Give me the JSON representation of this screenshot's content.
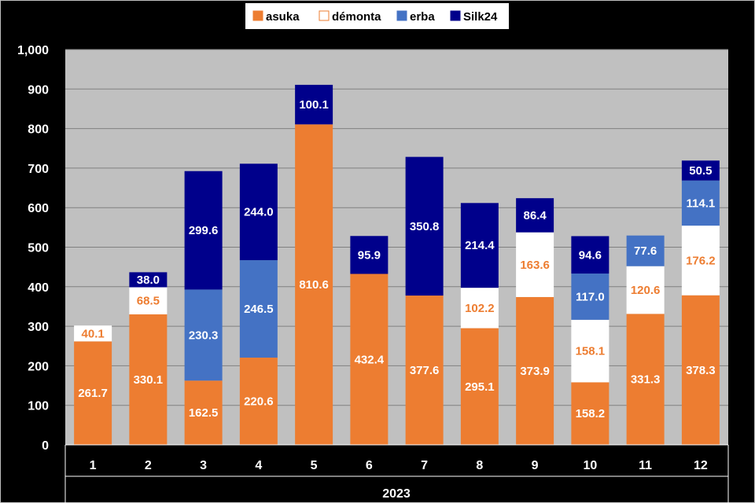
{
  "chart_data": {
    "type": "bar",
    "stacked": true,
    "categories": [
      "1",
      "2",
      "3",
      "4",
      "5",
      "6",
      "7",
      "8",
      "9",
      "10",
      "11",
      "12"
    ],
    "category_group_label": "2023",
    "series": [
      {
        "name": "asuka",
        "color": "#ED7D31",
        "label_color": "#FFFFFF",
        "values": [
          261.7,
          330.1,
          162.5,
          220.6,
          810.6,
          432.4,
          377.6,
          295.1,
          373.9,
          158.2,
          331.3,
          378.3
        ]
      },
      {
        "name": "démonta",
        "color": "#FFFFFF",
        "label_color": "#ED7D31",
        "values": [
          40.1,
          68.5,
          null,
          null,
          null,
          null,
          null,
          102.2,
          163.6,
          158.1,
          120.6,
          176.2
        ]
      },
      {
        "name": "erba",
        "color": "#4472C4",
        "label_color": "#FFFFFF",
        "values": [
          null,
          null,
          230.3,
          246.5,
          null,
          null,
          null,
          null,
          null,
          117.0,
          77.6,
          114.1
        ]
      },
      {
        "name": "Silk24",
        "color": "#00008B",
        "label_color": "#FFFFFF",
        "values": [
          null,
          38.0,
          299.6,
          244.0,
          100.1,
          95.9,
          350.8,
          214.4,
          86.4,
          94.6,
          null,
          50.5
        ]
      }
    ],
    "ylim": [
      0,
      1000
    ],
    "yticks": [
      "0",
      "100",
      "200",
      "300",
      "400",
      "500",
      "600",
      "700",
      "800",
      "900",
      "1,000"
    ],
    "grid": true,
    "legend_position": "top",
    "plot_background": "#C0C0C0"
  }
}
